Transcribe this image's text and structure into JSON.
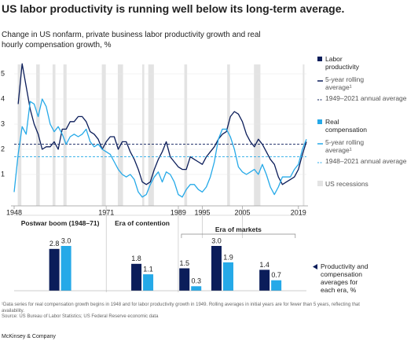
{
  "title": "US labor productivity is running well below its long-term average.",
  "subtitle": "Change in US nonfarm, private business labor productivity growth and real hourly compensation growth, %",
  "chart_data": [
    {
      "type": "line",
      "x": [
        1948,
        1949,
        1950,
        1951,
        1952,
        1953,
        1954,
        1955,
        1956,
        1957,
        1958,
        1959,
        1960,
        1961,
        1962,
        1963,
        1964,
        1965,
        1966,
        1967,
        1968,
        1969,
        1970,
        1971,
        1972,
        1973,
        1974,
        1975,
        1976,
        1977,
        1978,
        1979,
        1980,
        1981,
        1982,
        1983,
        1984,
        1985,
        1986,
        1987,
        1988,
        1989,
        1990,
        1991,
        1992,
        1993,
        1994,
        1995,
        1996,
        1997,
        1998,
        1999,
        2000,
        2001,
        2002,
        2003,
        2004,
        2005,
        2006,
        2007,
        2008,
        2009,
        2010,
        2011,
        2012,
        2013,
        2014,
        2015,
        2016,
        2017,
        2018,
        2019,
        2020,
        2021
      ],
      "series": [
        {
          "name": "Labor productivity",
          "label": "5-year rolling average¹",
          "color": "#0b1d5a",
          "values": [
            null,
            3.8,
            5.4,
            4.5,
            3.6,
            3.0,
            2.6,
            2.0,
            2.1,
            2.1,
            2.3,
            2.0,
            2.8,
            2.8,
            3.1,
            3.1,
            3.3,
            3.3,
            3.1,
            2.7,
            2.6,
            2.4,
            2.0,
            2.3,
            2.5,
            2.5,
            2.0,
            2.3,
            2.3,
            1.9,
            1.6,
            1.2,
            0.7,
            0.6,
            0.7,
            1.2,
            1.6,
            1.9,
            2.3,
            1.7,
            1.5,
            1.3,
            1.2,
            1.2,
            1.7,
            1.6,
            1.5,
            1.4,
            1.7,
            1.9,
            2.1,
            2.4,
            2.6,
            2.7,
            3.3,
            3.5,
            3.4,
            3.1,
            2.6,
            2.3,
            2.1,
            2.4,
            2.2,
            1.9,
            1.6,
            1.4,
            0.9,
            0.6,
            0.7,
            0.8,
            0.9,
            1.2,
            1.8,
            2.3
          ],
          "average": 2.2,
          "average_label": "1949–2021 annual average"
        },
        {
          "name": "Real compensation",
          "label": "5-year rolling average¹",
          "color": "#25a9e8",
          "values": [
            0.3,
            1.8,
            2.9,
            2.6,
            3.9,
            3.8,
            3.3,
            4.0,
            3.7,
            3.0,
            2.7,
            2.9,
            2.6,
            2.2,
            2.5,
            2.6,
            2.5,
            2.6,
            2.8,
            2.3,
            2.1,
            2.2,
            2.0,
            1.9,
            1.8,
            1.5,
            1.2,
            1.0,
            0.9,
            1.0,
            0.8,
            0.3,
            0.1,
            0.2,
            0.6,
            0.9,
            1.1,
            0.7,
            1.1,
            1.0,
            0.7,
            0.2,
            0.1,
            0.4,
            0.6,
            0.6,
            0.4,
            0.3,
            0.5,
            0.9,
            1.5,
            2.4,
            2.8,
            2.8,
            2.5,
            2.0,
            1.3,
            1.1,
            1.0,
            1.1,
            1.2,
            1.0,
            1.4,
            1.0,
            0.5,
            0.2,
            0.5,
            0.9,
            0.9,
            0.9,
            1.2,
            1.4,
            2.0,
            2.4
          ],
          "average": 1.7,
          "average_label": "1948–2021 annual average"
        }
      ],
      "recession_label": "US recessions",
      "recessions": [
        [
          1948.9,
          1949.8
        ],
        [
          1953.5,
          1954.4
        ],
        [
          1957.6,
          1958.3
        ],
        [
          1960.3,
          1961.1
        ],
        [
          1969.9,
          1970.9
        ],
        [
          1973.9,
          1975.2
        ],
        [
          1980.0,
          1980.5
        ],
        [
          1981.5,
          1982.9
        ],
        [
          1990.5,
          1991.2
        ],
        [
          2001.2,
          2001.9
        ],
        [
          2007.9,
          2009.5
        ],
        [
          2020.1,
          2020.4
        ]
      ],
      "xlim": [
        1948,
        2021
      ],
      "xticks": [
        1948,
        1971,
        1989,
        1995,
        2005,
        2019
      ],
      "ylim": [
        0,
        5.5
      ],
      "yticks": [
        1,
        2,
        3,
        4,
        5
      ]
    },
    {
      "type": "bar",
      "categories": [
        "Postwar boom (1948–71)",
        "Era of contention",
        null,
        null,
        null
      ],
      "group_title": "Era of markets",
      "series": [
        {
          "name": "Labor productivity",
          "color": "#0b1d5a",
          "values": [
            2.8,
            1.8,
            1.5,
            3.0,
            1.4
          ],
          "value_labels": [
            "2.8",
            "1.8",
            "1.5",
            "3.0",
            "1.4"
          ]
        },
        {
          "name": "Real compensation",
          "color": "#25a9e8",
          "values": [
            3.0,
            1.1,
            0.3,
            1.9,
            0.7
          ],
          "value_labels": [
            "3.0",
            "1.1",
            "0.3",
            "1.9",
            "0.7"
          ]
        }
      ],
      "annotation": "Productivity and compensation averages for each era, %"
    }
  ],
  "footnote": "¹Data series for real compensation growth begins in 1948 and for labor productivity growth in 1949. Rolling averages in initial years are for fewer than 5 years, reflecting that availability.",
  "source": "Source: US Bureau of Labor Statistics; US Federal Reserve economic data",
  "footer": "McKinsey & Company"
}
